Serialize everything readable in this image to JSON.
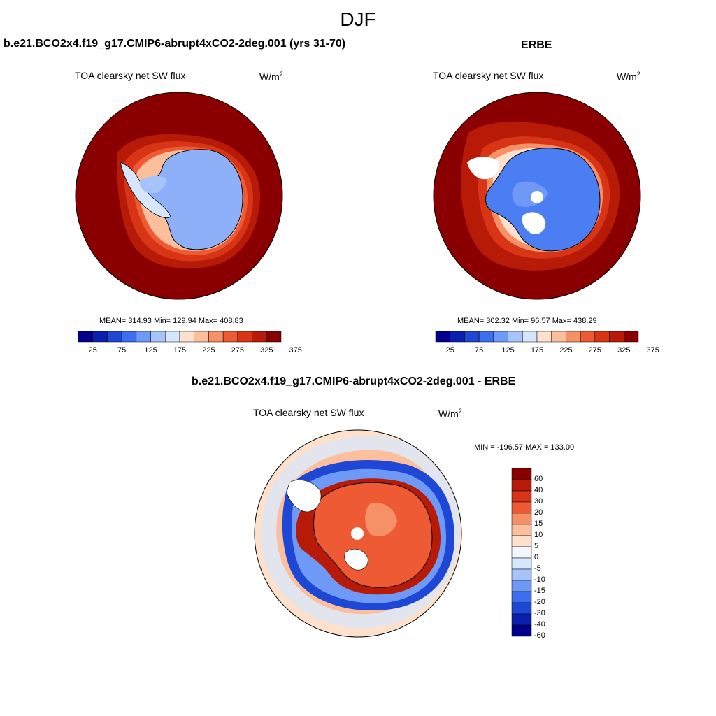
{
  "title": "DJF",
  "panel_left": {
    "case_title": "b.e21.BCO2x4.f19_g17.CMIP6-abrupt4xCO2-2deg.001 (yrs 31-70)",
    "variable": "TOA clearsky net SW flux",
    "units_base": "W/m",
    "units_exp": "2",
    "stats": "MEAN= 314.93  Min= 129.94  Max= 408.83"
  },
  "panel_right": {
    "case_title": "ERBE",
    "variable": "TOA clearsky net SW flux",
    "units_base": "W/m",
    "units_exp": "2",
    "stats": "MEAN= 302.32  Min=  96.57  Max= 438.29"
  },
  "panel_diff": {
    "case_title": "b.e21.BCO2x4.f19_g17.CMIP6-abrupt4xCO2-2deg.001 - ERBE",
    "variable": "TOA clearsky net SW flux",
    "units_base": "W/m",
    "units_exp": "2",
    "stats": "MIN = -196.57 MAX = 133.00"
  },
  "colorbar_abs": {
    "ticks": [
      "25",
      "75",
      "125",
      "175",
      "225",
      "275",
      "325",
      "375"
    ],
    "colors": [
      "#00008c",
      "#0a1fb0",
      "#1f47d6",
      "#3c6ef0",
      "#6f99f7",
      "#a6c4fb",
      "#d6e6fc",
      "#fde1cc",
      "#fbbf9c",
      "#f69066",
      "#ee5a34",
      "#d83416",
      "#b81a08",
      "#8a0000"
    ]
  },
  "colorbar_diff": {
    "ticks": [
      "60",
      "40",
      "30",
      "20",
      "15",
      "10",
      "5",
      "0",
      "-5",
      "-10",
      "-15",
      "-20",
      "-30",
      "-40",
      "-60"
    ],
    "colors": [
      "#8a0000",
      "#b81a08",
      "#d83416",
      "#ee5a34",
      "#f69066",
      "#fbbf9c",
      "#fde1cc",
      "#f4f6fd",
      "#d6e6fc",
      "#a6c4fb",
      "#6f99f7",
      "#3c6ef0",
      "#1f47d6",
      "#0a1fb0",
      "#00008c"
    ]
  }
}
